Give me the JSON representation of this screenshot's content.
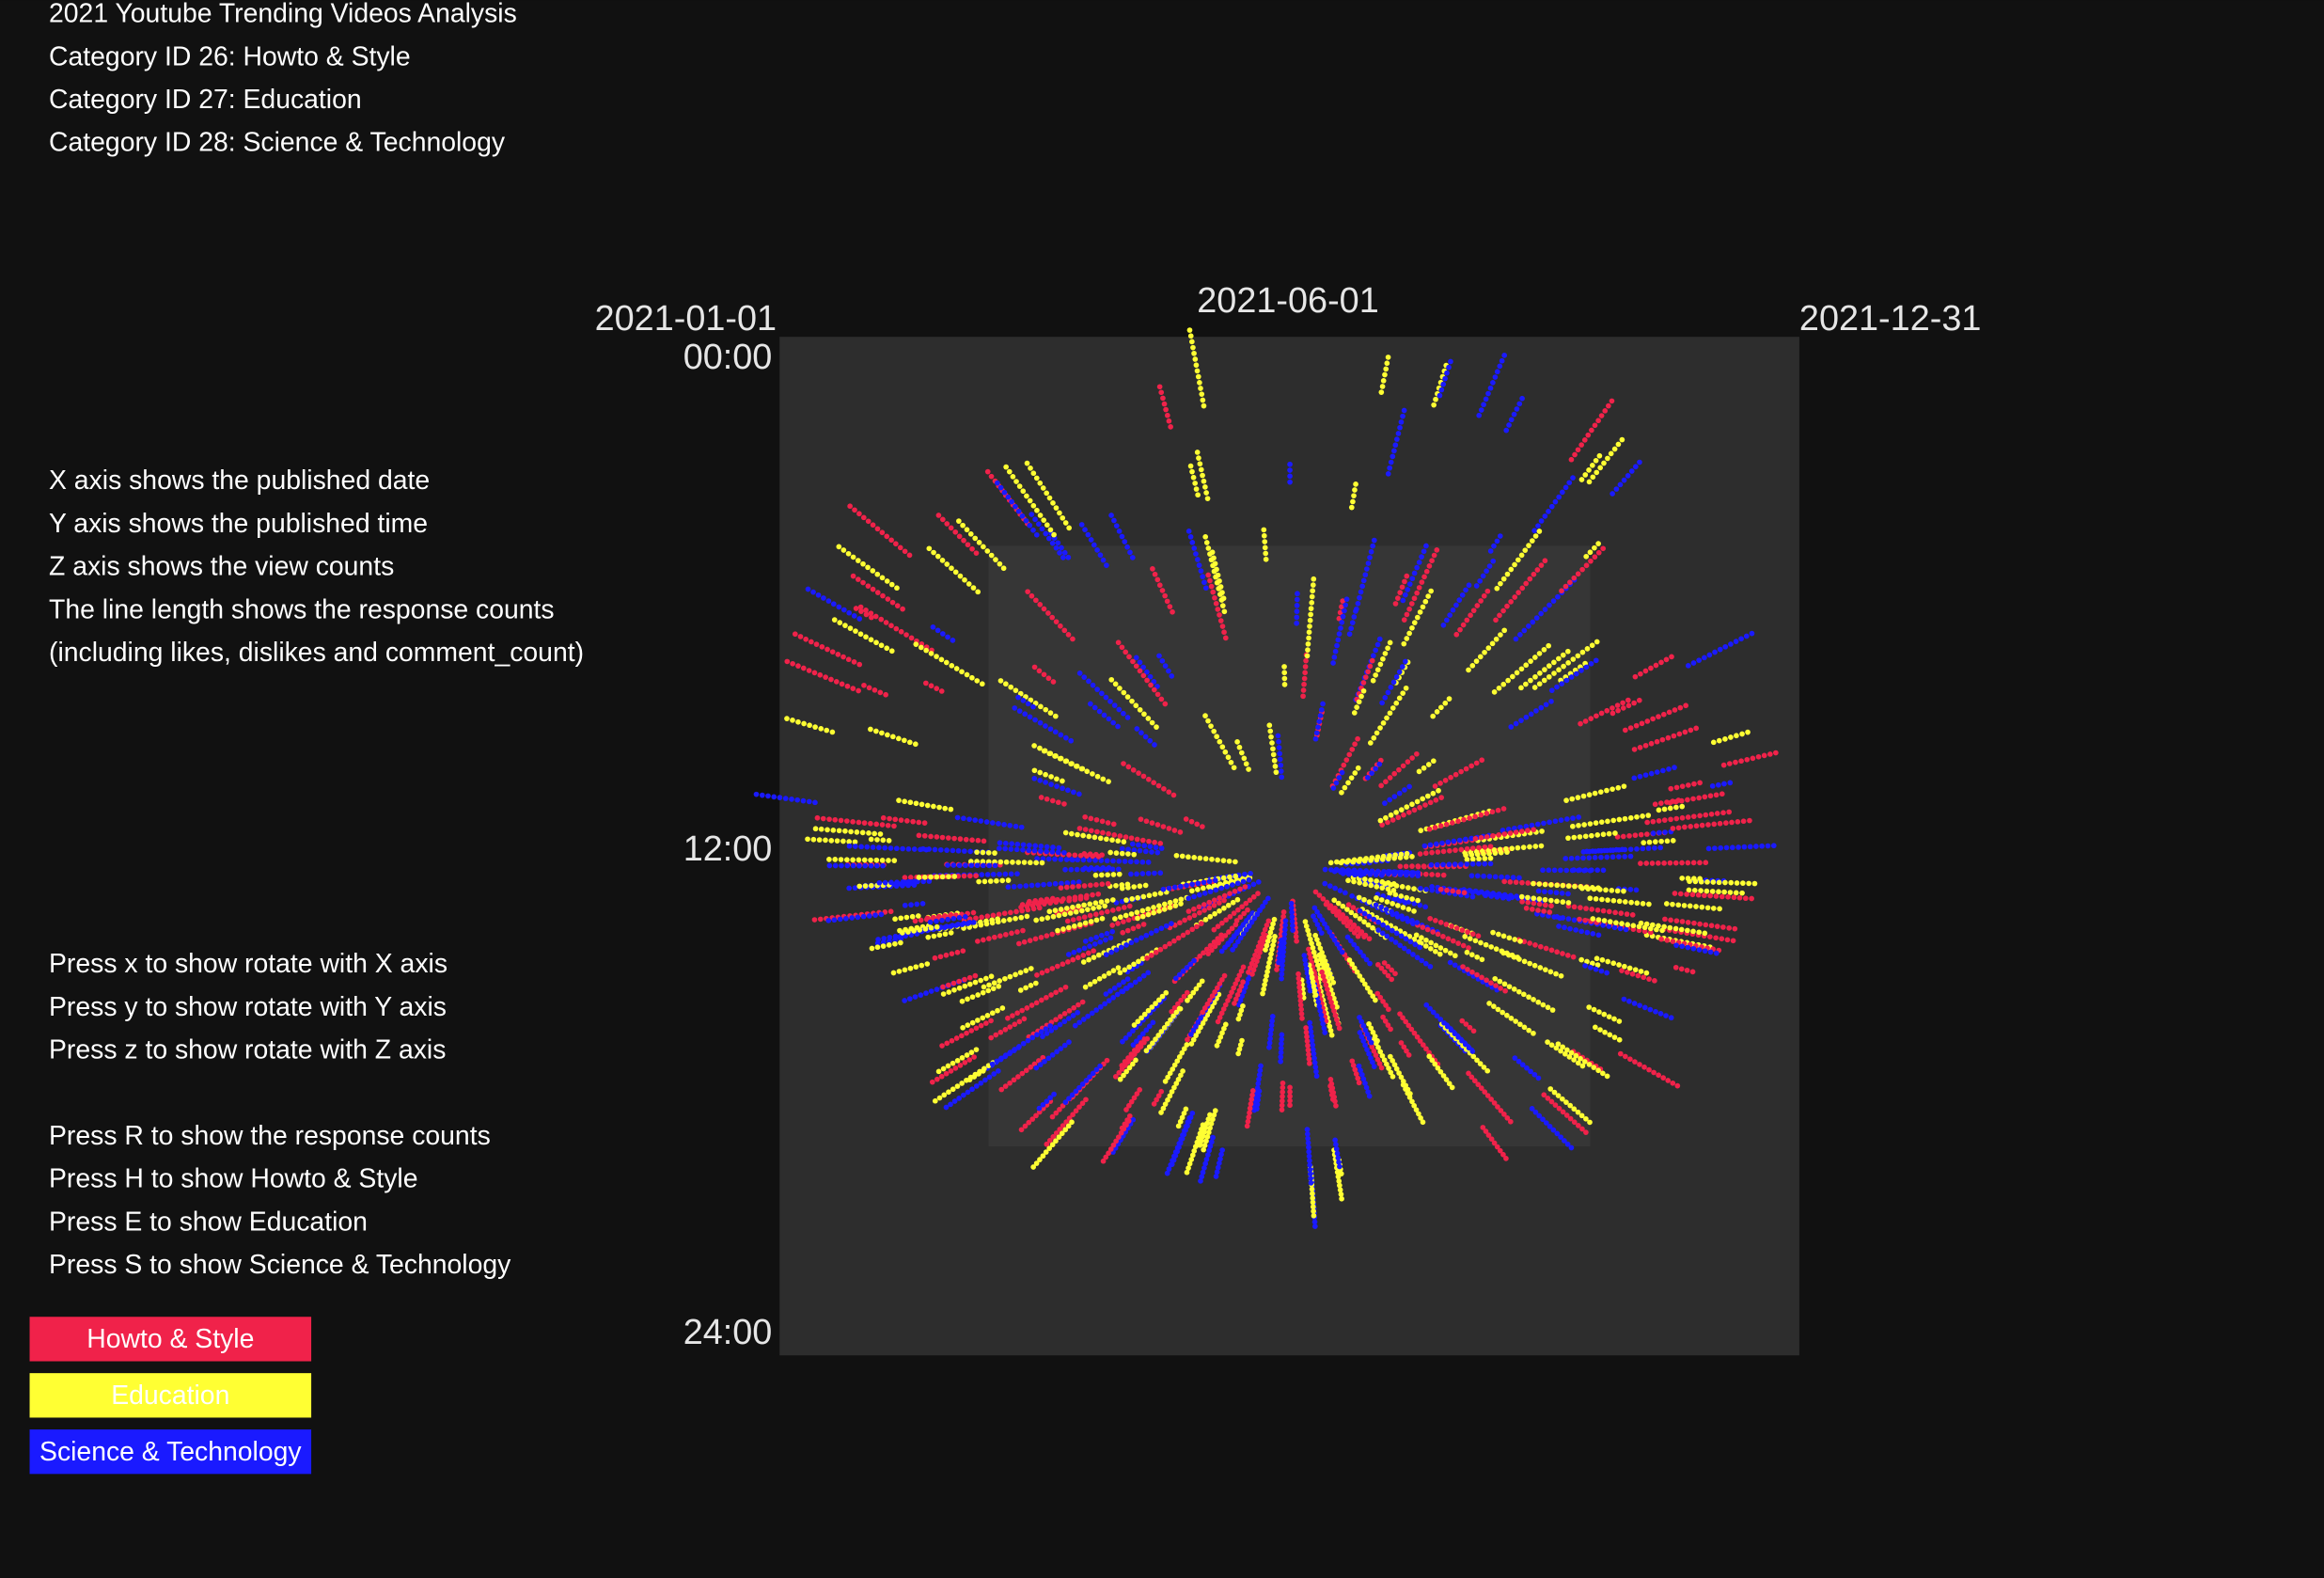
{
  "header": {
    "title": "2021 Youtube Trending Videos Analysis",
    "categories": [
      "Category ID 26: Howto & Style",
      "Category ID 27: Education",
      "Category ID 28: Science & Technology"
    ]
  },
  "description": [
    "X axis shows the published date",
    "Y axis shows the published time",
    "Z axis shows the view counts",
    "The line length shows the response counts",
    "(including likes, dislikes and comment_count)"
  ],
  "controls": {
    "rotate": [
      "Press x to show rotate with X axis",
      "Press y to show rotate with Y axis",
      "Press z to show rotate with Z axis"
    ],
    "toggles": [
      "Press R to show the response counts",
      "Press H to show Howto & Style",
      "Press E to show Education",
      "Press S to show Science & Technology"
    ]
  },
  "axes": {
    "x_labels": [
      "2021-01-01",
      "2021-06-01",
      "2021-12-31"
    ],
    "y_labels": [
      "00:00",
      "12:00",
      "24:00"
    ]
  },
  "legend": [
    {
      "label": "Howto & Style",
      "color": "#f0224a"
    },
    {
      "label": "Education",
      "color": "#ffff33"
    },
    {
      "label": "Science & Technology",
      "color": "#1a1aff"
    }
  ]
}
